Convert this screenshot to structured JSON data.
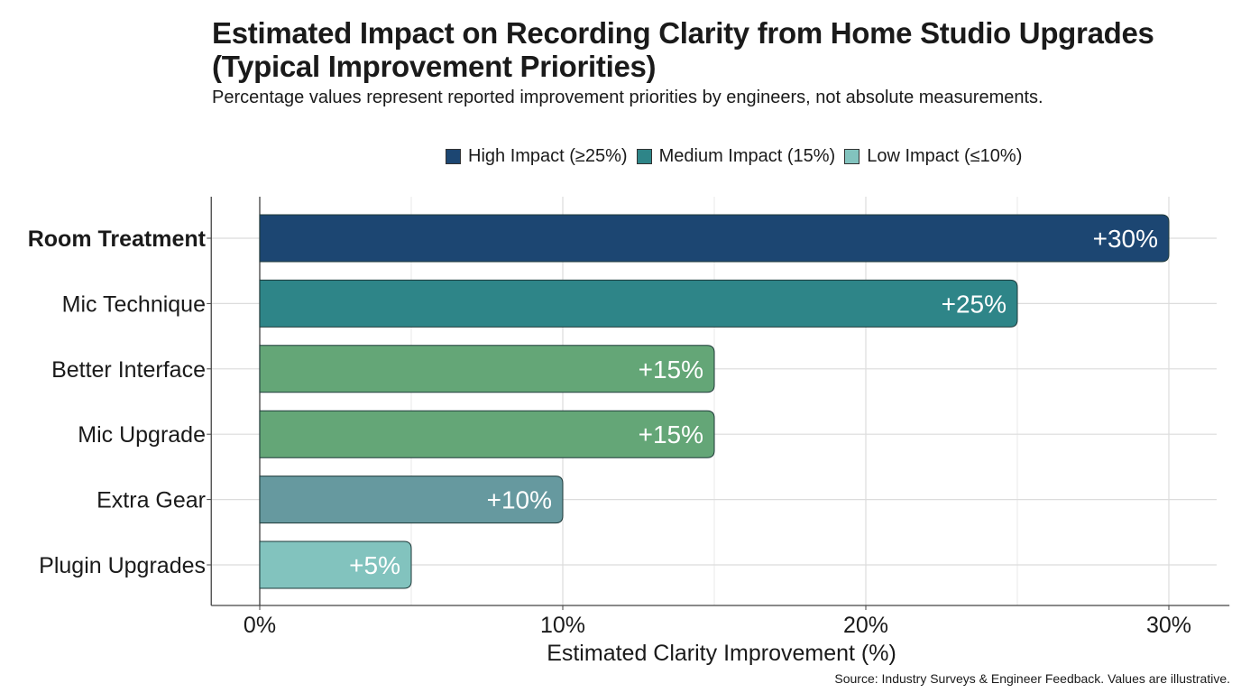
{
  "chart_data": {
    "type": "bar",
    "orientation": "horizontal",
    "title": "Estimated Impact on Recording Clarity from Home Studio Upgrades (Typical Improvement Priorities)",
    "title_lines": [
      "Estimated Impact on Recording Clarity from Home Studio Upgrades",
      "(Typical Improvement Priorities)"
    ],
    "subtitle": "Percentage values represent reported improvement priorities by engineers, not absolute measurements.",
    "categories": [
      "Room Treatment",
      "Mic Technique",
      "Better Interface",
      "Mic Upgrade",
      "Extra Gear",
      "Plugin Upgrades"
    ],
    "values": [
      30,
      25,
      15,
      15,
      10,
      5
    ],
    "data_labels": [
      "+30%",
      "+25%",
      "+15%",
      "+15%",
      "+10%",
      "+5%"
    ],
    "bar_colors": [
      "#1c4672",
      "#2e8588",
      "#64a677",
      "#64a677",
      "#66999f",
      "#82c3be"
    ],
    "xlabel": "Estimated Clarity Improvement (%)",
    "ylabel": "",
    "xlim": [
      -1.6,
      32
    ],
    "xticks": [
      0,
      10,
      20,
      30
    ],
    "xtick_labels": [
      "0%",
      "10%",
      "20%",
      "30%"
    ],
    "grid": true,
    "legend_position": "top",
    "legend": [
      {
        "label": "High Impact (≥25%)",
        "color": "#1c4672"
      },
      {
        "label": "Medium Impact (15%)",
        "color": "#2e8588"
      },
      {
        "label": "Low Impact (≤10%)",
        "color": "#82c3be"
      }
    ],
    "bold_category": "Room Treatment",
    "source": "Source: Industry Surveys & Engineer Feedback. Values are illustrative."
  }
}
